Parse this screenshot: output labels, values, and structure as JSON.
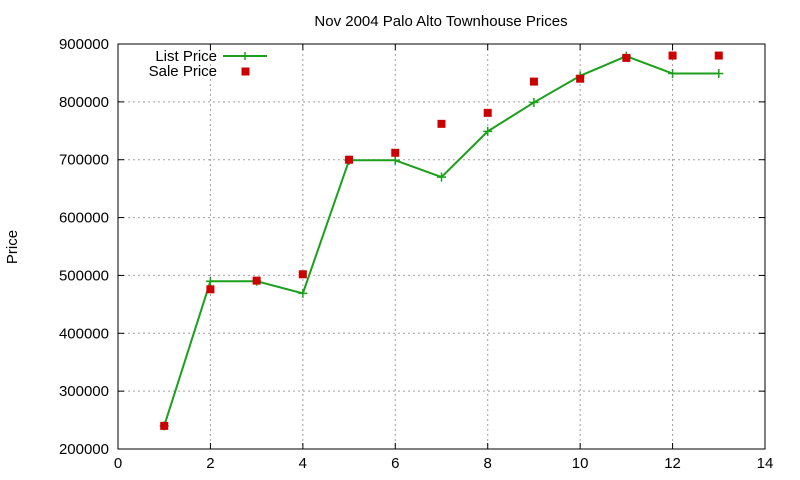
{
  "chart_data": {
    "type": "line",
    "title": "Nov 2004 Palo Alto Townhouse Prices",
    "xlabel": "",
    "ylabel": "Price",
    "xlim": [
      0,
      14
    ],
    "ylim": [
      200000,
      900000
    ],
    "xticks": [
      0,
      2,
      4,
      6,
      8,
      10,
      12,
      14
    ],
    "yticks": [
      200000,
      300000,
      400000,
      500000,
      600000,
      700000,
      800000,
      900000
    ],
    "grid": true,
    "legend_position": "top-left",
    "series": [
      {
        "name": "List Price",
        "style": "linespoints",
        "marker": "plus",
        "color": "#1aa01a",
        "x": [
          1,
          2,
          3,
          4,
          5,
          6,
          7,
          8,
          9,
          10,
          11,
          12,
          13
        ],
        "y": [
          240000,
          490000,
          490000,
          469000,
          699000,
          699000,
          670000,
          749000,
          799000,
          845000,
          879000,
          849000,
          849000
        ]
      },
      {
        "name": "Sale Price",
        "style": "points",
        "marker": "square",
        "color": "#cc0000",
        "x": [
          1,
          2,
          3,
          4,
          5,
          6,
          7,
          8,
          9,
          10,
          11,
          12,
          13
        ],
        "y": [
          240000,
          476000,
          491000,
          502000,
          700000,
          712000,
          762000,
          781000,
          835000,
          840000,
          876000,
          880000,
          880000
        ]
      }
    ]
  }
}
